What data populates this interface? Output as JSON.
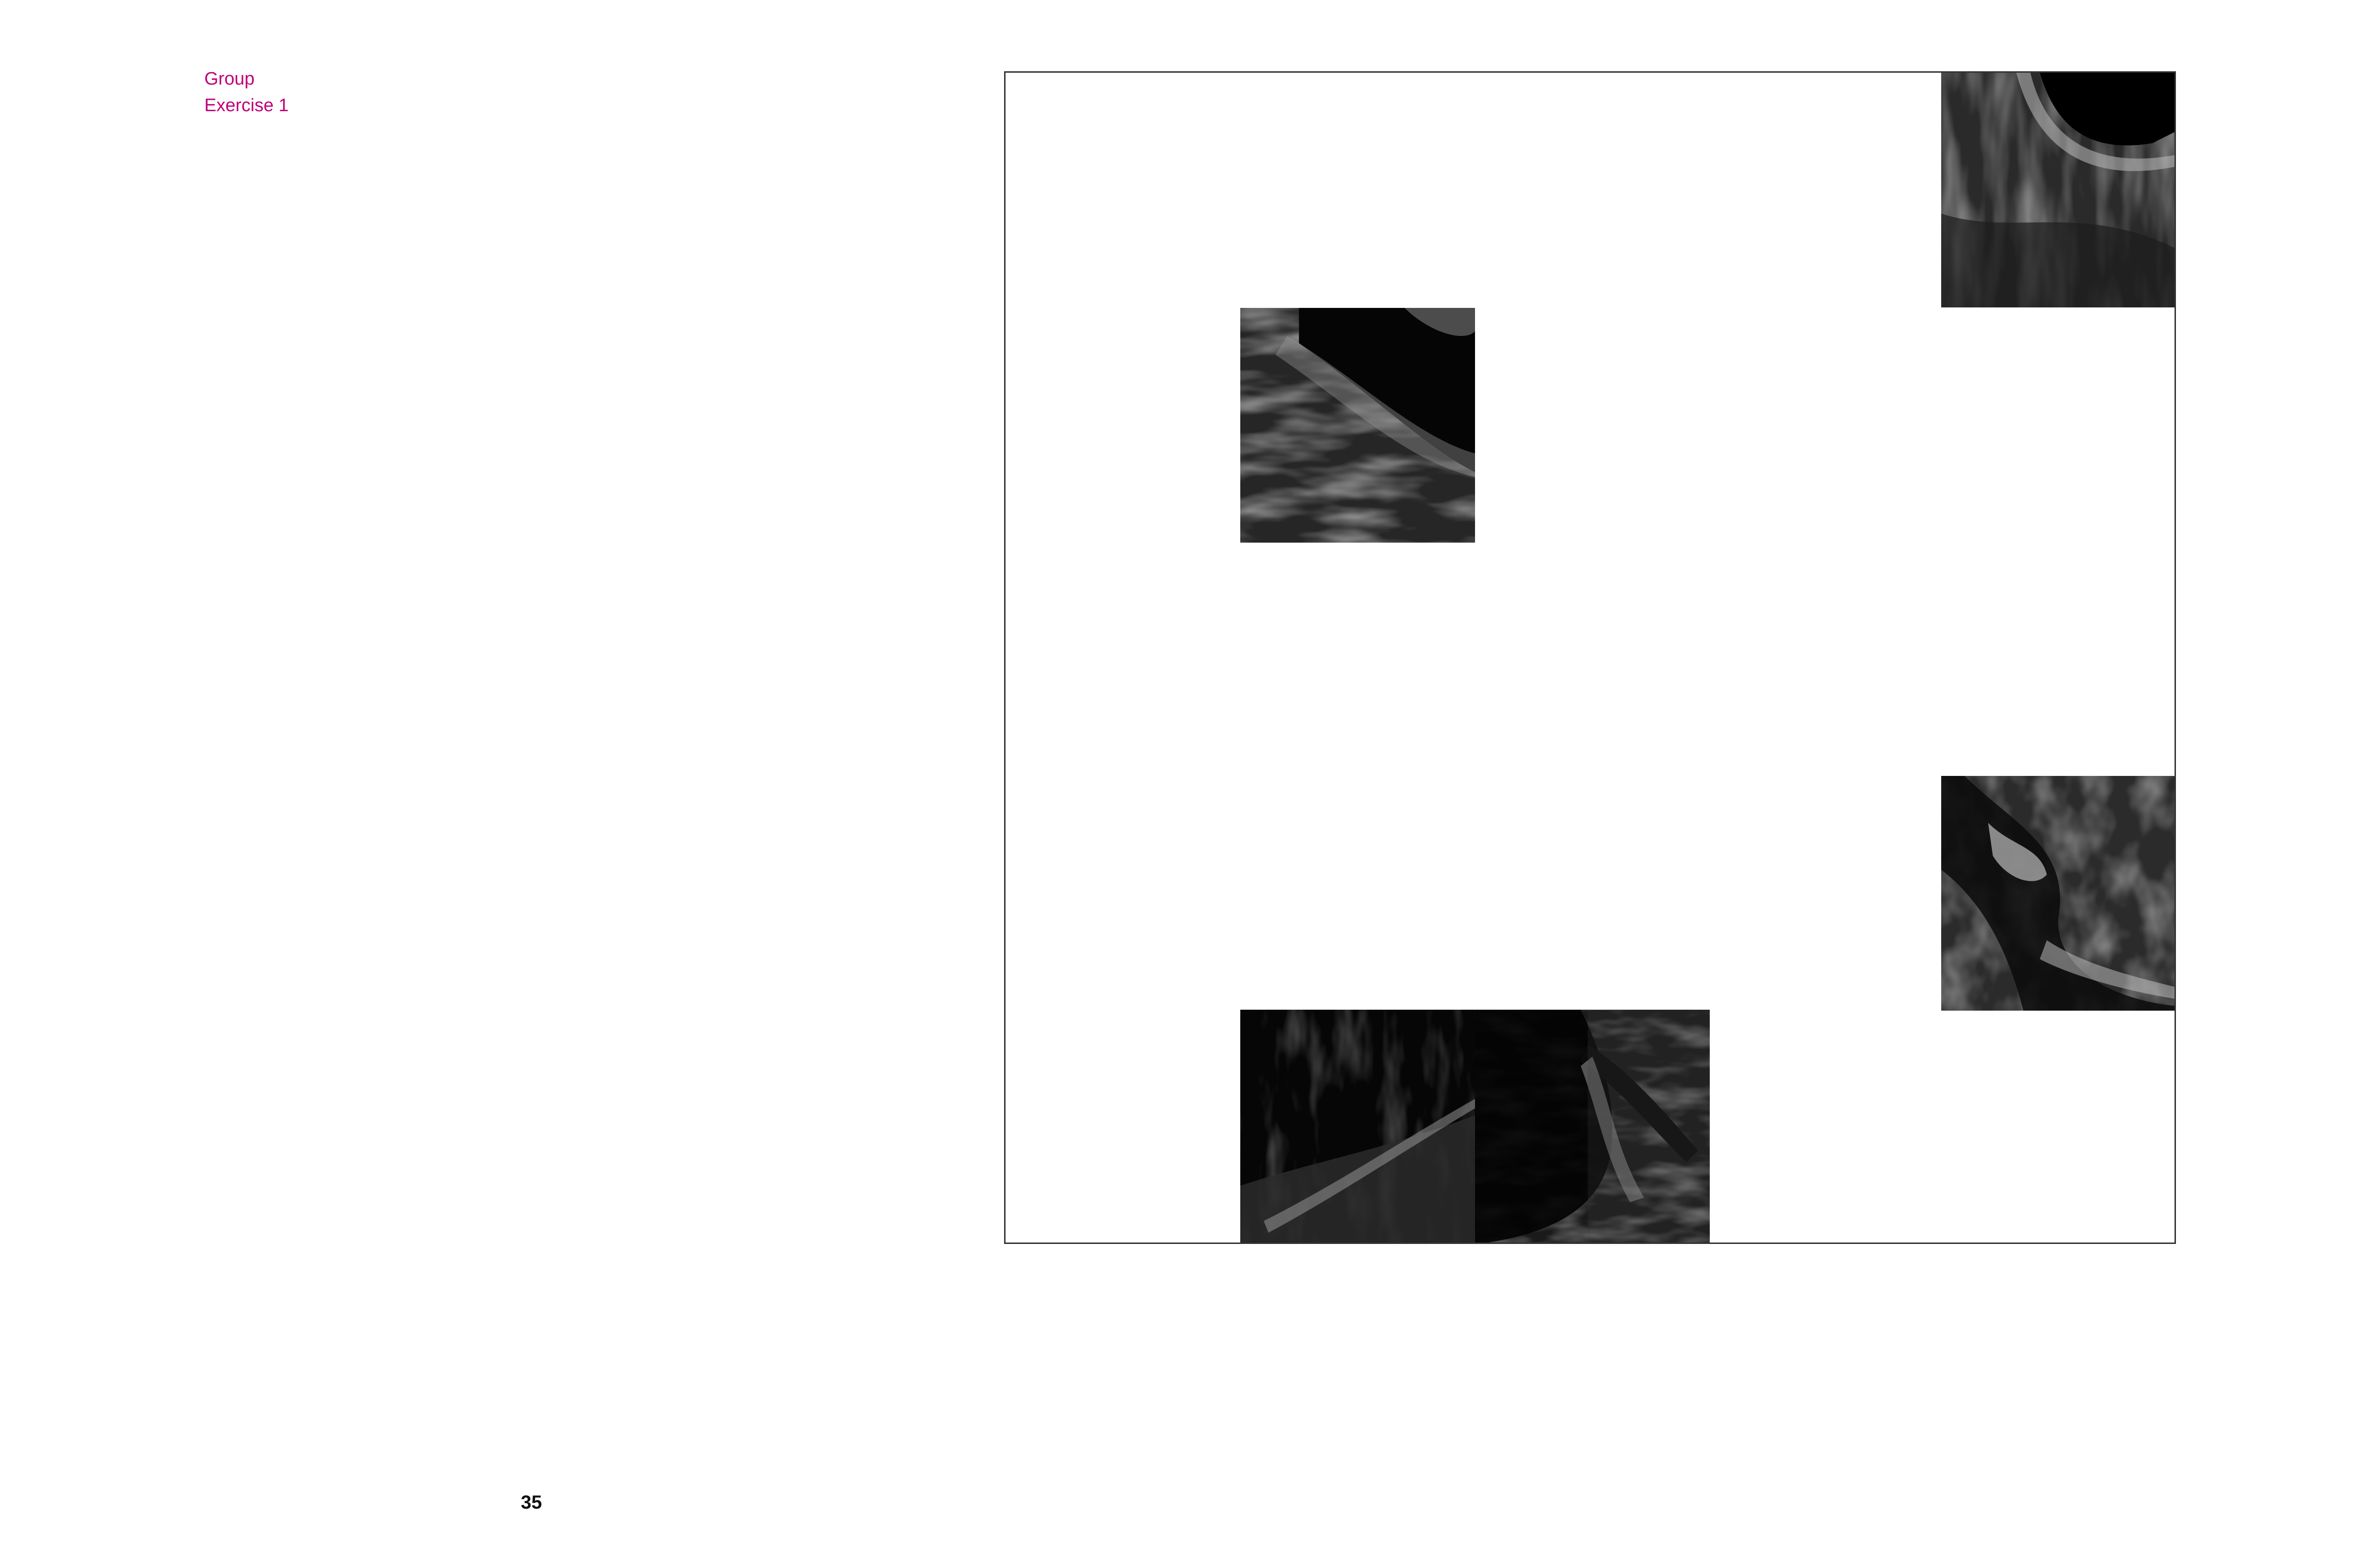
{
  "header": {
    "line1": "Group",
    "line2": "Exercise 1"
  },
  "page_number": "35",
  "colors": {
    "accent": "#c0007a",
    "frame_border": "#333333",
    "tile_base": "#141414"
  },
  "artwork": {
    "tiles": [
      {
        "name": "artwork-tile-top-right",
        "style": "dark-texture"
      },
      {
        "name": "artwork-tile-upper-left",
        "style": "dark-texture"
      },
      {
        "name": "artwork-tile-mid-right",
        "style": "dark-texture"
      },
      {
        "name": "artwork-tile-bottom-left",
        "style": "dark-texture"
      },
      {
        "name": "artwork-tile-bottom-center",
        "style": "dark-texture"
      }
    ]
  }
}
